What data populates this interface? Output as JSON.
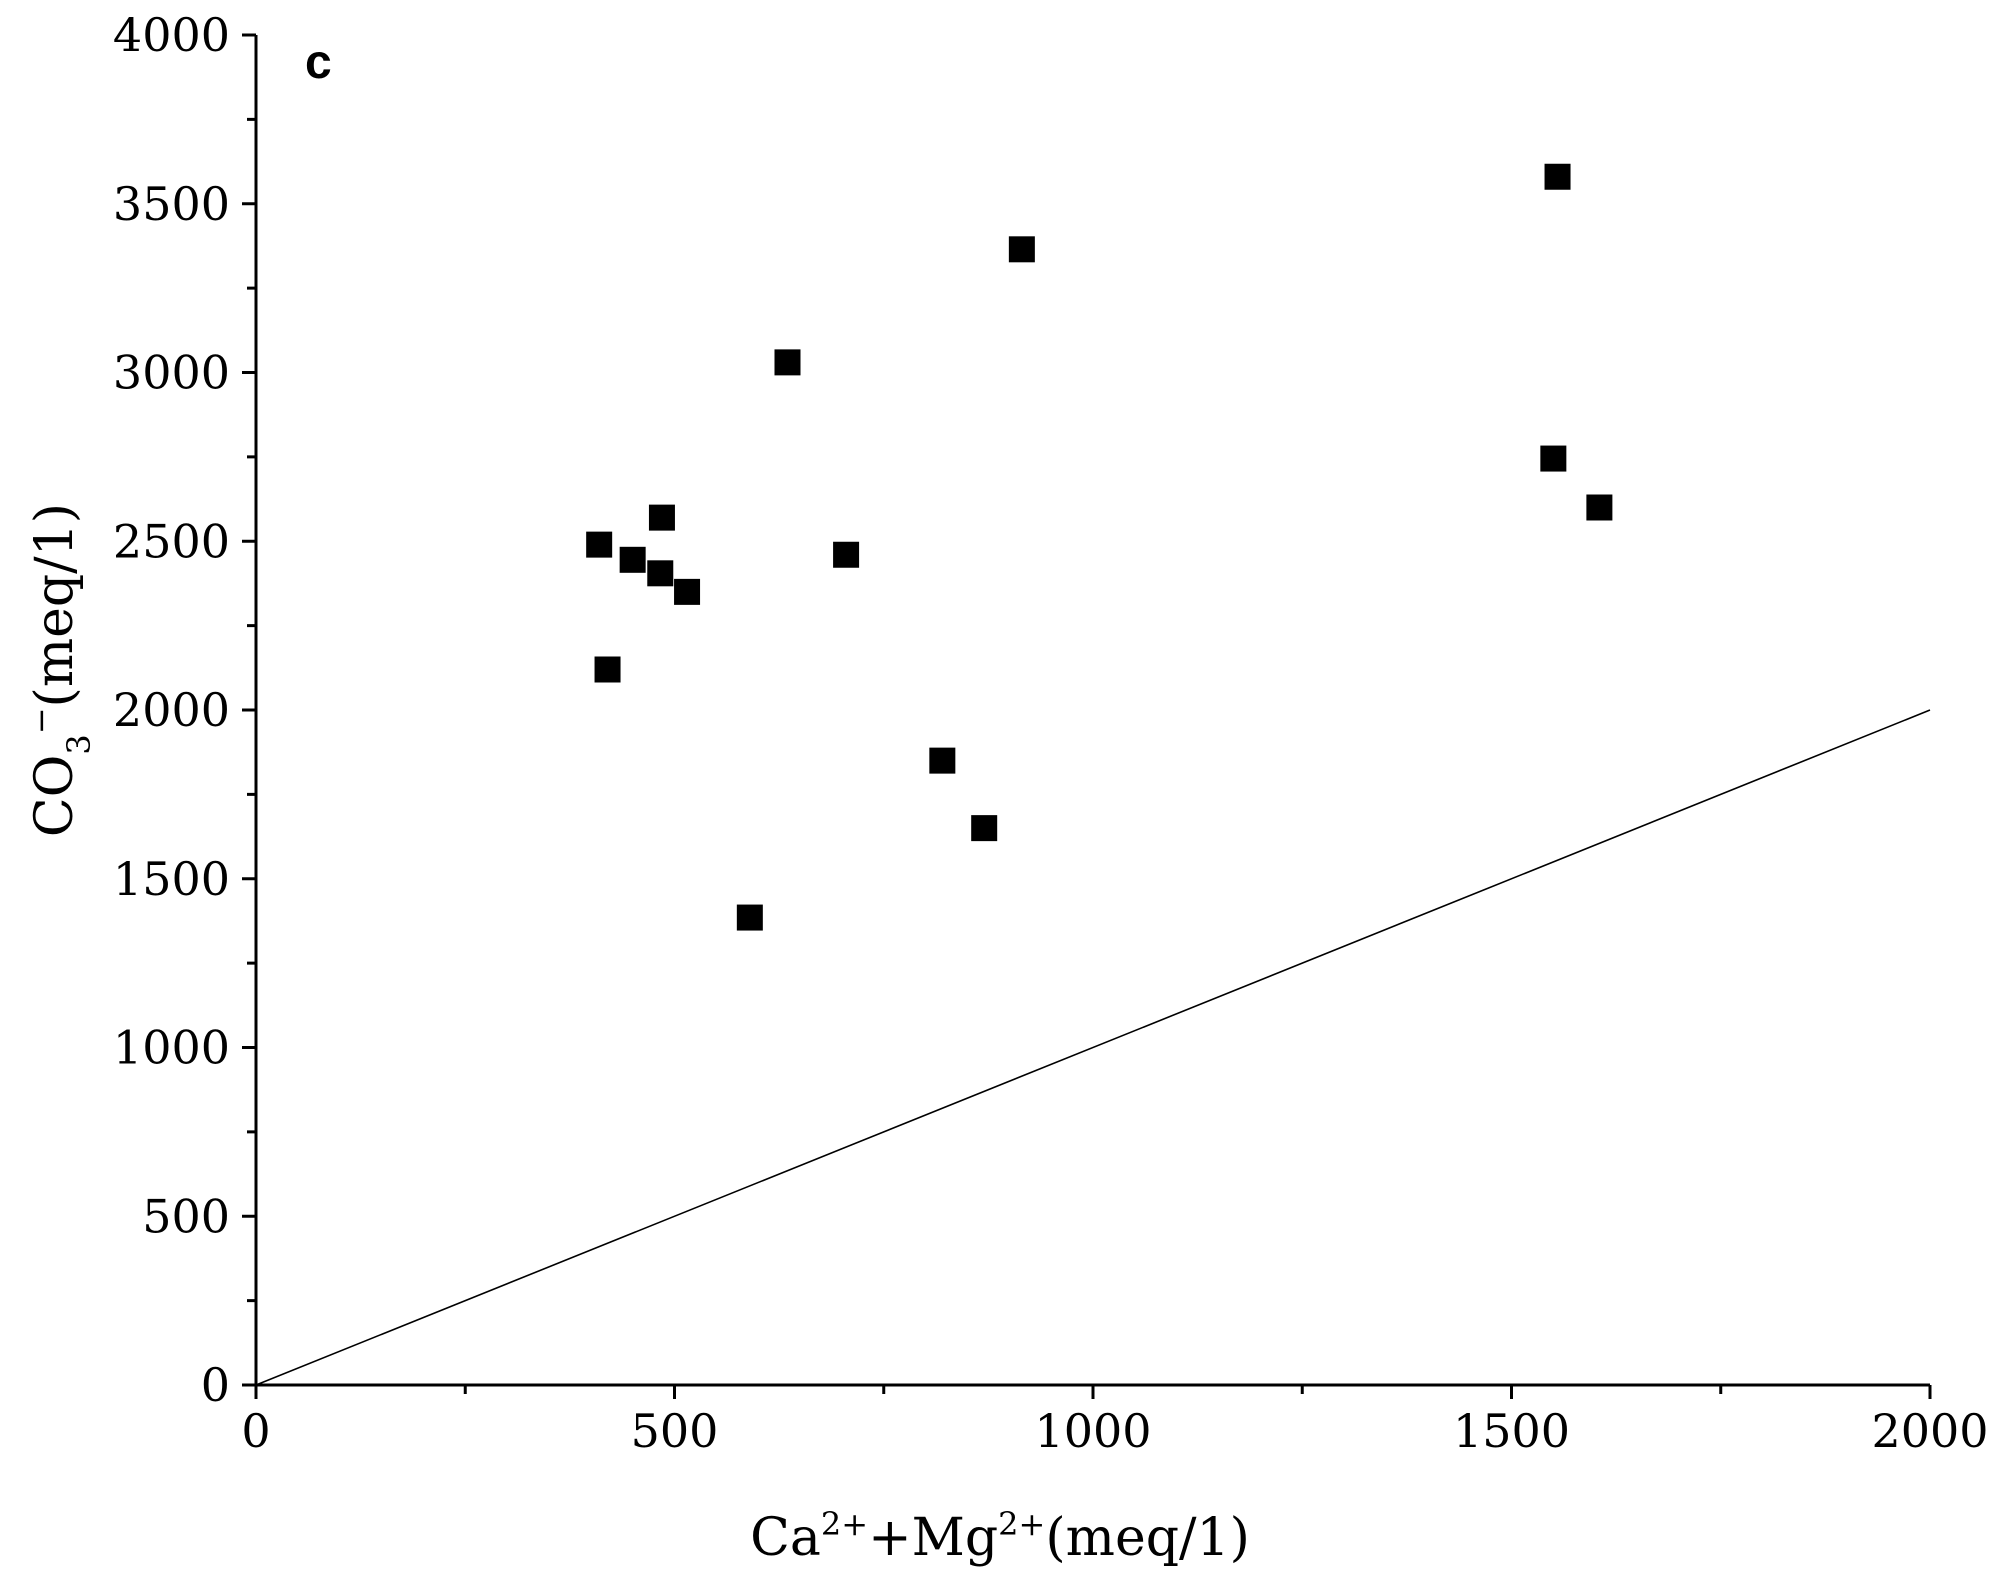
{
  "chart_data": {
    "type": "scatter",
    "panel_label": "c",
    "xlabel": {
      "pre": "Ca",
      "sup1": "2+",
      "mid": "+Mg",
      "sup2": "2+",
      "post": "(meq/1)"
    },
    "ylabel": {
      "pre": "CO",
      "sub": "3",
      "sup": "−",
      "post": "(meq/1)"
    },
    "xlim": [
      0,
      2000
    ],
    "ylim": [
      0,
      4000
    ],
    "xticks": [
      0,
      500,
      1000,
      1500,
      2000
    ],
    "yticks": [
      0,
      500,
      1000,
      1500,
      2000,
      2500,
      3000,
      3500,
      4000
    ],
    "x_minor_step": 250,
    "y_minor_step": 250,
    "grid": false,
    "marker": "square",
    "marker_color": "#000000",
    "reference_line": {
      "from": [
        0,
        0
      ],
      "to": [
        2000,
        2000
      ]
    },
    "points": [
      {
        "x": 410,
        "y": 2490
      },
      {
        "x": 450,
        "y": 2445
      },
      {
        "x": 483,
        "y": 2405
      },
      {
        "x": 485,
        "y": 2570
      },
      {
        "x": 515,
        "y": 2350
      },
      {
        "x": 420,
        "y": 2120
      },
      {
        "x": 590,
        "y": 1385
      },
      {
        "x": 635,
        "y": 3030
      },
      {
        "x": 705,
        "y": 2460
      },
      {
        "x": 820,
        "y": 1850
      },
      {
        "x": 870,
        "y": 1650
      },
      {
        "x": 915,
        "y": 3365
      },
      {
        "x": 1550,
        "y": 2745
      },
      {
        "x": 1555,
        "y": 3580
      },
      {
        "x": 1605,
        "y": 2600
      }
    ]
  }
}
